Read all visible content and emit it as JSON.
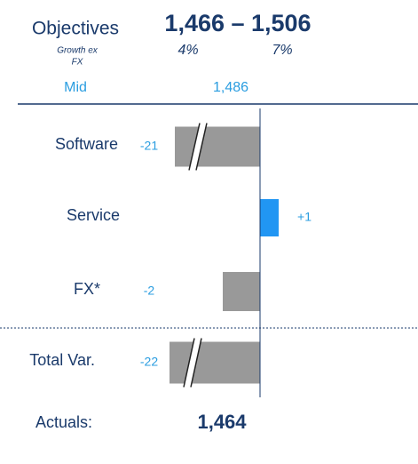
{
  "chart_data": {
    "type": "bar",
    "orientation": "horizontal",
    "objectives_label": "Objectives",
    "objectives_note": [
      "Growth ex",
      "FX"
    ],
    "objectives_range": "1,466 – 1,506",
    "growth_low": "4%",
    "growth_high": "7%",
    "mid_label": "Mid",
    "mid_value": "1,486",
    "categories": [
      "Software",
      "Service",
      "FX*",
      "Total Var."
    ],
    "values": [
      -21,
      1,
      -2,
      -22
    ],
    "value_labels": [
      "-21",
      "+1",
      "-2",
      "-22"
    ],
    "negative_color": "#999999",
    "positive_color": "#2196f3",
    "actuals_label": "Actuals:",
    "actuals_value": "1,464"
  }
}
